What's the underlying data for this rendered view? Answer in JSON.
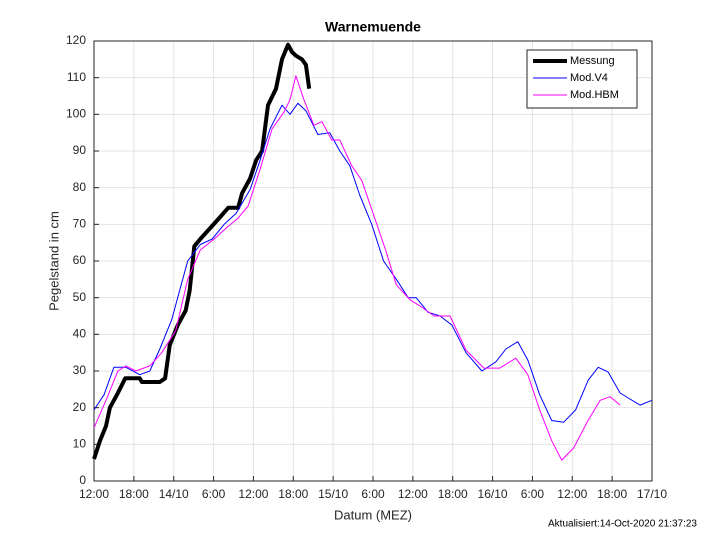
{
  "chart_data": {
    "type": "line",
    "title": "Warnemuende",
    "xlabel": "Datum (MEZ)",
    "ylabel": "Pegelstand in cm",
    "footer": "Aktualisiert:14-Oct-2020 21:37:23",
    "xlim": [
      0,
      84
    ],
    "xticks": [
      {
        "value": 0,
        "label": "12:00"
      },
      {
        "value": 6,
        "label": "18:00"
      },
      {
        "value": 12,
        "label": "14/10"
      },
      {
        "value": 18,
        "label": "6:00"
      },
      {
        "value": 24,
        "label": "12:00"
      },
      {
        "value": 30,
        "label": "18:00"
      },
      {
        "value": 36,
        "label": "15/10"
      },
      {
        "value": 42,
        "label": "6:00"
      },
      {
        "value": 48,
        "label": "12:00"
      },
      {
        "value": 54,
        "label": "18:00"
      },
      {
        "value": 60,
        "label": "16/10"
      },
      {
        "value": 66,
        "label": "6:00"
      },
      {
        "value": 72,
        "label": "12:00"
      },
      {
        "value": 78,
        "label": "18:00"
      },
      {
        "value": 84,
        "label": "17/10"
      }
    ],
    "ylim": [
      0,
      120
    ],
    "yticks": [
      0,
      10,
      20,
      30,
      40,
      50,
      60,
      70,
      80,
      90,
      100,
      110,
      120
    ],
    "grid": true,
    "legend": "upper right",
    "series": [
      {
        "name": "Messung",
        "color": "#000000",
        "width": 4,
        "x": [
          0,
          0.9,
          1.8,
          2.4,
          3.6,
          4.7,
          6.9,
          7.2,
          9.9,
          10.7,
          11.4,
          12.6,
          13.8,
          14.4,
          15.1,
          16,
          17.5,
          19,
          20.2,
          21.7,
          22.3,
          23.5,
          24.4,
          25.3,
          26.2,
          27.4,
          28.3,
          29.2,
          29.8,
          30.4,
          31.3,
          31.9,
          32.4
        ],
        "values": [
          6,
          11,
          15,
          20,
          24,
          28,
          28,
          27,
          27,
          28,
          37,
          42.5,
          46.5,
          52,
          64,
          66,
          69,
          72,
          74.5,
          74.5,
          78.5,
          82.5,
          87.5,
          90,
          102.5,
          107,
          115,
          119,
          117,
          116,
          115,
          113.5,
          107
        ]
      },
      {
        "name": "Mod.V4",
        "color": "#0000ff",
        "width": 1,
        "x": [
          0,
          1.5,
          3,
          4.8,
          6.9,
          8.4,
          9.9,
          11.7,
          12.9,
          14.1,
          16,
          17.8,
          19.6,
          21.4,
          23.5,
          25,
          26.5,
          28.3,
          29.5,
          30.7,
          31.9,
          33.7,
          35.5,
          37,
          38.5,
          40,
          41.8,
          43.6,
          45.5,
          47.3,
          48.5,
          50.3,
          52.1,
          53.9,
          56,
          58.4,
          60.5,
          62,
          63.8,
          65.3,
          67.1,
          68.9,
          70.7,
          72.5,
          74.4,
          75.9,
          77.4,
          79.2,
          82.2,
          84
        ],
        "values": [
          19.4,
          23.5,
          31,
          31,
          29,
          30,
          36,
          44,
          52,
          60,
          64.5,
          66,
          70,
          73,
          79.5,
          87.5,
          96,
          102.5,
          100,
          103,
          101,
          94.5,
          95,
          90,
          86,
          78,
          70,
          60,
          55,
          50,
          50,
          46,
          45,
          42.5,
          35,
          30,
          32.5,
          36,
          38,
          33,
          23.5,
          16.5,
          16,
          19.4,
          27.5,
          31,
          29.7,
          24,
          20.7,
          22
        ]
      },
      {
        "name": "Mod.HBM",
        "color": "#ff00ff",
        "width": 1,
        "x": [
          0,
          1.8,
          3.6,
          4.8,
          6.3,
          8.4,
          10.2,
          12.3,
          14.1,
          16,
          18.1,
          19.9,
          21.7,
          23.2,
          25,
          26.8,
          28.6,
          29.5,
          30.4,
          31.6,
          33.1,
          34.3,
          35.8,
          37,
          38.8,
          40.3,
          42.1,
          43.9,
          45.5,
          47.6,
          49.1,
          51.2,
          53.6,
          56,
          58.7,
          61.1,
          63.5,
          65.3,
          67.1,
          68.9,
          70.4,
          72.2,
          74.4,
          76.2,
          77.7,
          79.2
        ],
        "values": [
          14.5,
          22,
          30,
          31.4,
          30,
          31.4,
          35,
          41,
          55,
          63,
          66,
          69,
          71.7,
          75,
          85,
          96,
          100.6,
          104,
          110.5,
          104,
          97,
          98,
          93,
          93,
          86,
          82,
          72.5,
          63,
          53.5,
          49.4,
          47.7,
          45,
          45,
          35.7,
          30.8,
          30.8,
          33.5,
          29,
          19.4,
          11,
          5.7,
          9,
          16.6,
          22,
          23,
          20.7
        ]
      }
    ]
  }
}
